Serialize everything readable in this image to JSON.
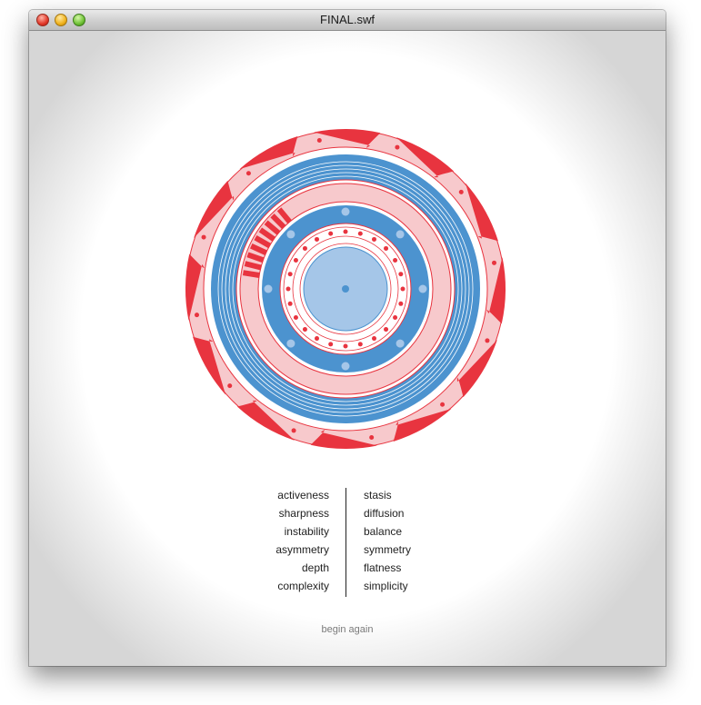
{
  "window": {
    "title": "FINAL.swf"
  },
  "colors": {
    "red": "#e8343f",
    "pink": "#f7c9cc",
    "blue": "#4c93cf",
    "light_blue": "#a5c6e8"
  },
  "qualities": {
    "left": [
      "activeness",
      "sharpness",
      "instability",
      "asymmetry",
      "depth",
      "complexity"
    ],
    "right": [
      "stasis",
      "diffusion",
      "balance",
      "symmetry",
      "flatness",
      "simplicity"
    ]
  },
  "actions": {
    "begin_again": "begin again"
  }
}
